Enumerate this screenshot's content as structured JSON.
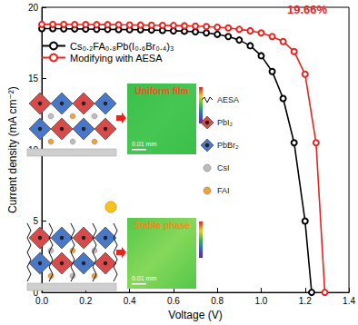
{
  "chart_data": {
    "type": "line",
    "xlabel": "Voltage (V)",
    "ylabel": "Current density (mA cm⁻²)",
    "xlim": [
      0,
      1.4
    ],
    "xticks": [
      {
        "value": 0,
        "label": "0.0"
      },
      {
        "value": 0.2,
        "label": "0.2"
      },
      {
        "value": 0.4,
        "label": "0.4"
      },
      {
        "value": 0.6,
        "label": "0.6"
      },
      {
        "value": 0.8,
        "label": "0.8"
      },
      {
        "value": 1.0,
        "label": "1.0"
      },
      {
        "value": 1.2,
        "label": "1.2"
      },
      {
        "value": 1.4,
        "label": "1.4"
      }
    ],
    "ylim": [
      0,
      20
    ],
    "yticks": [
      0,
      5,
      10,
      15,
      20
    ],
    "grid": false,
    "legend": "upper left",
    "marker": "circle_open",
    "line_style": "solid",
    "annotation": "19.66%",
    "inset_labels": {
      "top_map": "Uniform film",
      "bottom_map": "Stable phase",
      "scale_bar": "0.01 mm",
      "key": [
        "AESA",
        "PbI₂",
        "PbBr₂",
        "CsI",
        "FAI"
      ]
    },
    "series": [
      {
        "name": "Cs₀.₂FA₀.₈Pb(I₀.₆Br₀.₄)₃",
        "color": "#000000",
        "x": [
          0,
          0.05,
          0.1,
          0.15,
          0.2,
          0.25,
          0.3,
          0.35,
          0.4,
          0.45,
          0.5,
          0.55,
          0.6,
          0.65,
          0.7,
          0.75,
          0.8,
          0.85,
          0.9,
          0.95,
          1.0,
          1.05,
          1.1,
          1.15,
          1.2,
          1.23
        ],
        "values": [
          18.5,
          18.5,
          18.49,
          18.48,
          18.47,
          18.46,
          18.45,
          18.44,
          18.43,
          18.42,
          18.4,
          18.38,
          18.35,
          18.32,
          18.28,
          18.2,
          18.1,
          17.95,
          17.7,
          17.3,
          16.6,
          15.5,
          13.6,
          10.5,
          5.0,
          0
        ]
      },
      {
        "name": "Modifying with AESA",
        "color": "#e8231f",
        "x": [
          0,
          0.05,
          0.1,
          0.15,
          0.2,
          0.25,
          0.3,
          0.35,
          0.4,
          0.45,
          0.5,
          0.55,
          0.6,
          0.65,
          0.7,
          0.75,
          0.8,
          0.85,
          0.9,
          0.95,
          1.0,
          1.05,
          1.1,
          1.15,
          1.2,
          1.25,
          1.29
        ],
        "values": [
          18.8,
          18.8,
          18.8,
          18.79,
          18.79,
          18.78,
          18.78,
          18.77,
          18.76,
          18.75,
          18.74,
          18.73,
          18.72,
          18.7,
          18.68,
          18.65,
          18.6,
          18.55,
          18.45,
          18.35,
          18.2,
          17.95,
          17.6,
          16.9,
          15.3,
          10.5,
          0
        ]
      }
    ]
  }
}
